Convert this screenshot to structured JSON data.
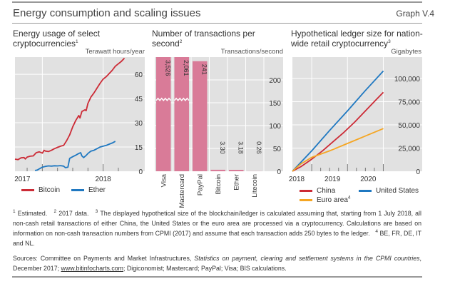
{
  "header": {
    "title": "Energy consumption and scaling issues",
    "graph_id": "Graph V.4"
  },
  "panels": [
    {
      "title": "Energy usage of select cryptocurrencies",
      "title_sup": "1",
      "unit": "Terawatt hours/year"
    },
    {
      "title": "Number of transactions per second",
      "title_sup": "2",
      "unit": "Transactions/second"
    },
    {
      "title": "Hypothetical ledger size for nation-wide retail cryptocurrency",
      "title_line1": "Hypothetical ledger size for nation-",
      "title_line2": "wide retail cryptocurrency",
      "title_sup": "3",
      "unit": "Gigabytes"
    }
  ],
  "chart_data": [
    {
      "type": "line",
      "title": "Energy usage of select cryptocurrencies",
      "ylabel": "Terawatt hours/year",
      "ylim": [
        0,
        68
      ],
      "yticks": [
        0,
        15,
        30,
        45,
        60
      ],
      "xlim": [
        2016.55,
        2018.45
      ],
      "xticks": [
        {
          "value": 2017,
          "label": "2017"
        },
        {
          "value": 2018,
          "label": "2018"
        }
      ],
      "xminor": [
        2016.75,
        2017.25,
        2017.5,
        2017.75,
        2018.25
      ],
      "grid": true,
      "legend": "bottom",
      "colors": {
        "Bitcoin": "#cc2b36",
        "Ether": "#1f78c1"
      },
      "series": [
        {
          "name": "Bitcoin",
          "x": [
            2016.55,
            2016.6,
            2016.65,
            2016.7,
            2016.72,
            2016.75,
            2016.8,
            2016.85,
            2016.9,
            2016.95,
            2017.0,
            2017.03,
            2017.05,
            2017.1,
            2017.15,
            2017.2,
            2017.25,
            2017.3,
            2017.35,
            2017.4,
            2017.45,
            2017.5,
            2017.55,
            2017.6,
            2017.62,
            2017.65,
            2017.7,
            2017.72,
            2017.75,
            2017.8,
            2017.85,
            2017.9,
            2017.95,
            2018.0,
            2018.05,
            2018.1,
            2018.15,
            2018.2,
            2018.25,
            2018.3,
            2018.35
          ],
          "values": [
            7.5,
            7.2,
            8.3,
            8.5,
            7.6,
            8.8,
            9.3,
            9.5,
            11.5,
            12.0,
            11.2,
            13.0,
            12.5,
            12.2,
            13.0,
            14.0,
            14.8,
            15.5,
            16.0,
            19.0,
            22.5,
            27.5,
            31.5,
            34.5,
            33.0,
            37.0,
            38.0,
            37.5,
            42.0,
            46.0,
            48.5,
            51.5,
            54.5,
            57.0,
            58.5,
            60.5,
            62.5,
            65.0,
            66.5,
            68.0,
            70.0
          ]
        },
        {
          "name": "Ether",
          "x": [
            2016.88,
            2016.92,
            2016.95,
            2017.0,
            2017.05,
            2017.1,
            2017.15,
            2017.2,
            2017.25,
            2017.3,
            2017.35,
            2017.38,
            2017.42,
            2017.45,
            2017.5,
            2017.55,
            2017.6,
            2017.63,
            2017.65,
            2017.68,
            2017.72,
            2017.75,
            2017.8,
            2017.85,
            2017.9,
            2017.95,
            2018.0,
            2018.05,
            2018.1,
            2018.15,
            2018.2
          ],
          "values": [
            0.5,
            0.8,
            1.5,
            2.5,
            3.0,
            3.3,
            3.2,
            3.4,
            3.3,
            3.5,
            3.2,
            2.2,
            2.5,
            8.0,
            9.0,
            10.0,
            11.0,
            11.5,
            9.5,
            8.5,
            9.8,
            11.0,
            12.5,
            13.0,
            14.0,
            15.0,
            15.5,
            16.0,
            16.8,
            17.5,
            18.5
          ]
        }
      ]
    },
    {
      "type": "bar",
      "title": "Number of transactions per second",
      "ylabel": "Transactions/second",
      "ylim": [
        0,
        250
      ],
      "yticks": [
        0,
        50,
        100,
        150,
        200
      ],
      "axis_break": true,
      "grid": true,
      "color": "#d97b98",
      "categories": [
        "Visa",
        "Mastercard",
        "PayPal",
        "Bitcoin",
        "Ether",
        "Litecoin"
      ],
      "values": [
        3526,
        2061,
        241,
        3.3,
        3.18,
        0.26
      ],
      "data_labels": [
        "3,526",
        "2,061",
        "241",
        "3.30",
        "3.18",
        "0.26"
      ]
    },
    {
      "type": "line",
      "title": "Hypothetical ledger size for nation-wide retail cryptocurrency",
      "ylabel": "Gigabytes",
      "ylim": [
        0,
        123000
      ],
      "yticks": [
        {
          "value": 0,
          "label": "0"
        },
        {
          "value": 25000,
          "label": "25,000"
        },
        {
          "value": 50000,
          "label": "50,000"
        },
        {
          "value": 75000,
          "label": "75,000"
        },
        {
          "value": 100000,
          "label": "100,000"
        }
      ],
      "xlim": [
        2017.96,
        2020.75
      ],
      "xticks": [
        {
          "value": 2018,
          "label": "2018"
        },
        {
          "value": 2019,
          "label": "2019"
        },
        {
          "value": 2020,
          "label": "2020"
        }
      ],
      "xmajor_ticks": [
        2018.5,
        2019.5,
        2020.5
      ],
      "xminor": [
        2018.75,
        2019.0,
        2019.25,
        2019.75,
        2020.0,
        2020.25
      ],
      "grid": true,
      "legend": "bottom",
      "colors": {
        "China": "#cc2b36",
        "United States": "#1f78c1",
        "Euro area": "#f5a623"
      },
      "series": [
        {
          "name": "China",
          "x": [
            2017.96,
            2018.2,
            2018.5,
            2018.8,
            2019.1,
            2019.4,
            2019.7,
            2020.0,
            2020.3,
            2020.5
          ],
          "values": [
            0,
            5000,
            13000,
            22000,
            32000,
            42000,
            53000,
            65000,
            77000,
            85000
          ]
        },
        {
          "name": "United States",
          "x": [
            2017.96,
            2018.5,
            2019.0,
            2019.5,
            2020.0,
            2020.5
          ],
          "values": [
            0,
            22000,
            44000,
            65000,
            87000,
            108000
          ]
        },
        {
          "name": "Euro area",
          "name_sup": "4",
          "x": [
            2017.96,
            2018.2,
            2018.5,
            2019.0,
            2019.5,
            2020.0,
            2020.5
          ],
          "values": [
            0,
            8000,
            15000,
            22000,
            30000,
            38000,
            46000
          ]
        }
      ]
    }
  ],
  "footnotes": {
    "n1_mark": "1",
    "n1": "Estimated.",
    "n2_mark": "2",
    "n2": "2017 data.",
    "n3_mark": "3",
    "n3": "The displayed hypothetical size of the blockchain/ledger is calculated assuming that, starting from 1 July 2018, all non-cash retail transactions of either China, the United States or the euro area are processed via a cryptocurrency. Calculations are based on information on non-cash transaction numbers from CPMI (2017) and assume that each transaction adds 250 bytes to the ledger.",
    "n4_mark": "4",
    "n4": "BE, FR, DE, IT and NL."
  },
  "sources": {
    "prefix": "Sources: Committee on Payments and Market Infrastructures, ",
    "italic": "Statistics on payment, clearing and settlement systems in the CPMI countries",
    "middle": ", December 2017; ",
    "link": "www.bitinfocharts.com",
    "suffix": "; Digiconomist; Mastercard; PayPal; Visa; BIS calculations."
  }
}
